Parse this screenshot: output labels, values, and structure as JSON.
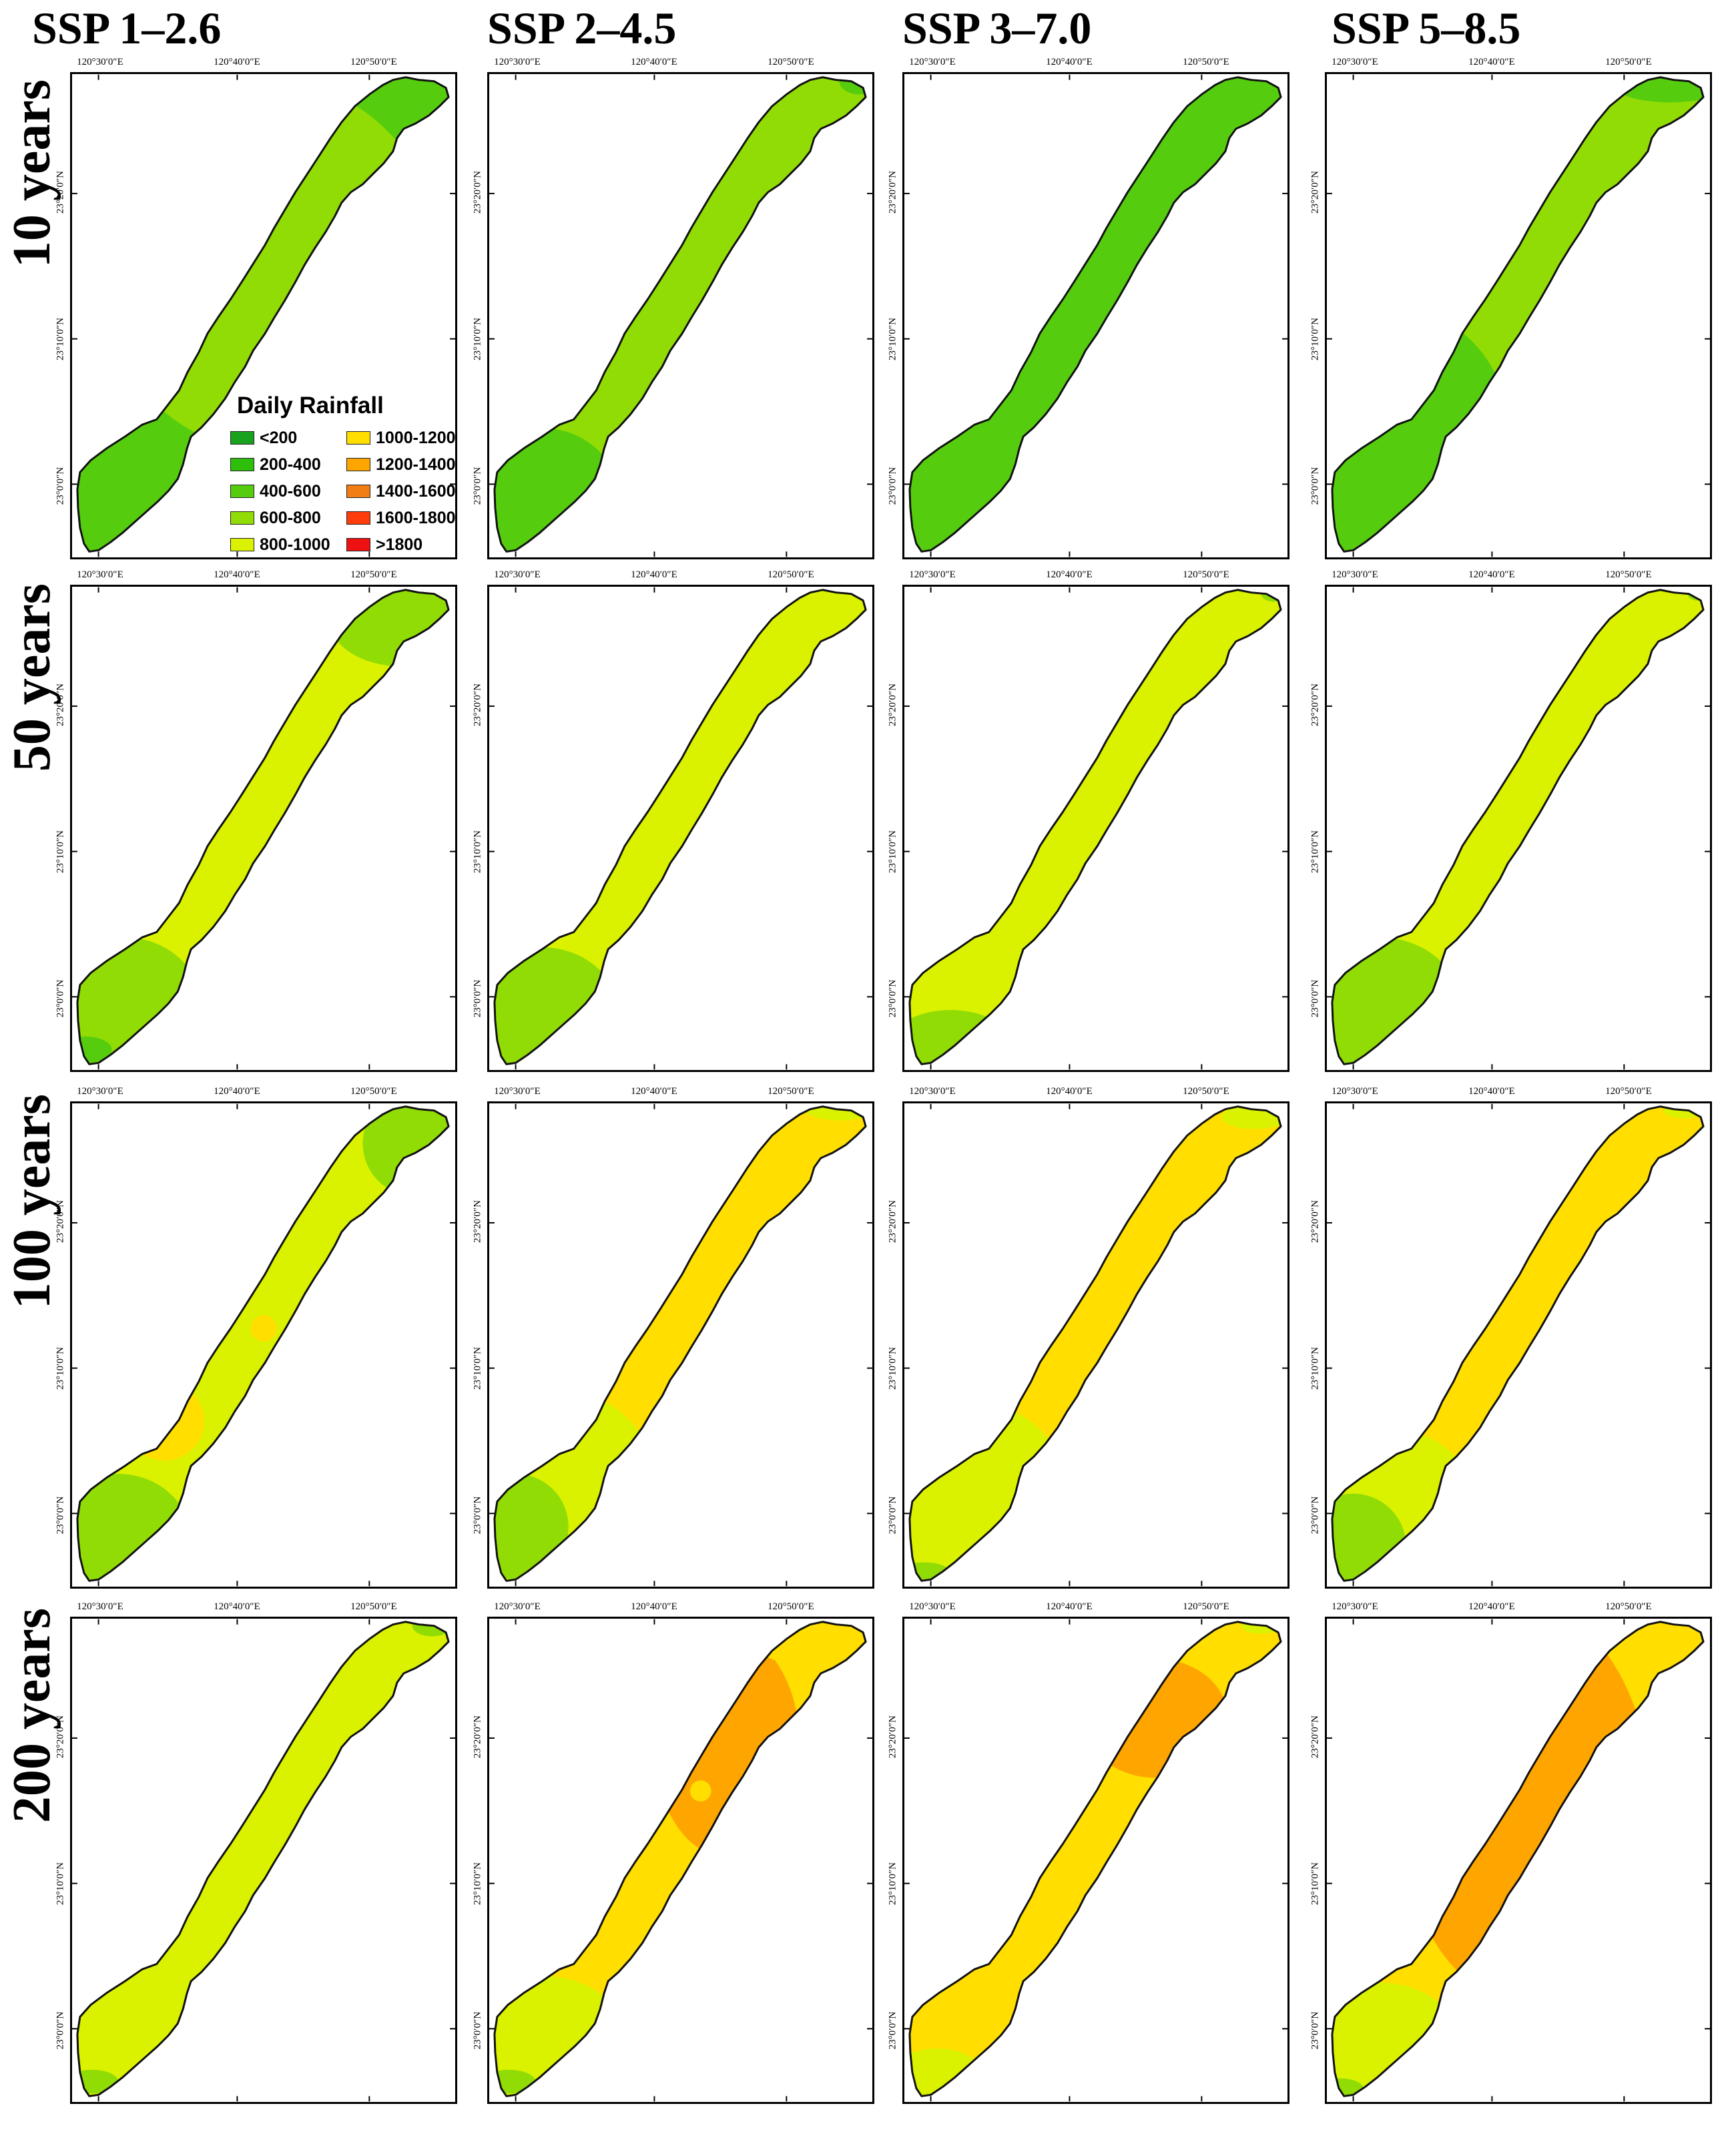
{
  "columns": [
    "SSP 1–2.6",
    "SSP 2–4.5",
    "SSP 3–7.0",
    "SSP 5–8.5"
  ],
  "rows": [
    "10 years",
    "50 years",
    "100 years",
    "200 years"
  ],
  "axis": {
    "lon_labels": [
      "120°30′0″E",
      "120°40′0″E",
      "120°50′0″E"
    ],
    "lat_labels": [
      "23°20′0″N",
      "23°10′0″N",
      "23°0′0″N"
    ]
  },
  "legend": {
    "title": "Daily Rainfall",
    "items": [
      {
        "label": "<200",
        "color": "#19a21e"
      },
      {
        "label": "1000-1200",
        "color": "#ffde00"
      },
      {
        "label": "200-400",
        "color": "#2dbf0c"
      },
      {
        "label": "1200-1400",
        "color": "#ffa500"
      },
      {
        "label": "400-600",
        "color": "#55cd0e"
      },
      {
        "label": "1400-1600",
        "color": "#f07e14"
      },
      {
        "label": "600-800",
        "color": "#92dc05"
      },
      {
        "label": "1600-1800",
        "color": "#ff3d0c"
      },
      {
        "label": "800-1000",
        "color": "#daf200"
      },
      {
        "label": ">1800",
        "color": "#ee1111"
      }
    ]
  },
  "colors": {
    "c200_400": "#2dbf0c",
    "c400_600": "#55cd0e",
    "c600_800": "#92dc05",
    "c800_1000": "#daf200",
    "c1000_1200": "#ffde00",
    "c1200_1400": "#ffa500",
    "border": "#111111"
  },
  "maps": [
    [
      "400-600",
      "600-800",
      "400-600",
      "600-800"
    ],
    [
      "800-1000",
      "800-1000",
      "800-1000",
      "800-1000"
    ],
    [
      "800-1000",
      "1000-1200",
      "1000-1200",
      "1000-1200"
    ],
    [
      "800-1000",
      "1000-1200",
      "1000-1200",
      "1000-1200"
    ]
  ]
}
